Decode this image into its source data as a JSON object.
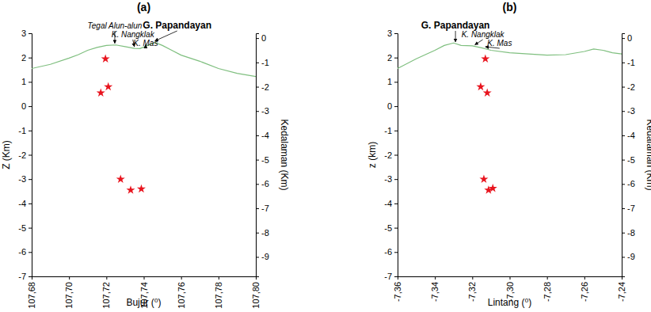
{
  "chart_data": [
    {
      "type": "scatter",
      "title": "(a)",
      "x_label": "Bujur (⁰)",
      "y_label": "Z (Km)",
      "y2_label": "Kedalaman (Km)",
      "xlim": [
        107.68,
        107.8
      ],
      "xticks": [
        {
          "value": 107.68,
          "label": "107,68"
        },
        {
          "value": 107.7,
          "label": "107,70"
        },
        {
          "value": 107.72,
          "label": "107,72"
        },
        {
          "value": 107.74,
          "label": "107,74"
        },
        {
          "value": 107.76,
          "label": "107,76"
        },
        {
          "value": 107.78,
          "label": "107,78"
        },
        {
          "value": 107.8,
          "label": "107,80"
        }
      ],
      "ylim": [
        -7,
        3
      ],
      "yticks": [
        -7,
        -6,
        -5,
        -4,
        -3,
        -2,
        -1,
        0,
        1,
        2,
        3
      ],
      "y2lim": [
        -9.8,
        0.2
      ],
      "y2ticks": [
        -9,
        -8,
        -7,
        -6,
        -5,
        -4,
        -3,
        -2,
        -1,
        0
      ],
      "series": [
        {
          "type": "line",
          "color": "#7fbf7f",
          "line_style": "solid",
          "x": [
            107.68,
            107.69,
            107.7,
            107.705,
            107.71,
            107.715,
            107.72,
            107.725,
            107.73,
            107.735,
            107.738,
            107.742,
            107.746,
            107.75,
            107.755,
            107.76,
            107.77,
            107.78,
            107.79,
            107.8
          ],
          "values": [
            1.55,
            1.72,
            1.98,
            2.12,
            2.3,
            2.42,
            2.5,
            2.52,
            2.45,
            2.38,
            2.37,
            2.5,
            2.62,
            2.5,
            2.3,
            2.1,
            1.85,
            1.55,
            1.35,
            1.22
          ]
        },
        {
          "type": "scatter",
          "color": "#e8141e",
          "marker": "star",
          "x": [
            107.7195,
            107.721,
            107.717,
            107.7276,
            107.733,
            107.7387
          ],
          "values": [
            1.95,
            0.8,
            0.55,
            -3.0,
            -3.45,
            -3.4
          ]
        }
      ],
      "annotations": [
        {
          "text": "Tegal Alun-alun",
          "x": 107.7245,
          "y": 2.52
        },
        {
          "text": "K. Nangklak",
          "x": 107.735,
          "y": 2.38
        },
        {
          "text": "K. Mas",
          "x": 107.741,
          "y": 2.46
        },
        {
          "text": "G. Papandayan",
          "x": 107.746,
          "y": 2.62
        }
      ]
    },
    {
      "type": "scatter",
      "title": "(b)",
      "x_label": "Lintang (⁰)",
      "y_label": "z (km)",
      "y2_label": "Kedalaman (Km)",
      "xlim": [
        -7.36,
        -7.24
      ],
      "xticks": [
        {
          "value": -7.36,
          "label": "-7,36"
        },
        {
          "value": -7.34,
          "label": "-7,34"
        },
        {
          "value": -7.32,
          "label": "-7,32"
        },
        {
          "value": -7.3,
          "label": "-7,30"
        },
        {
          "value": -7.28,
          "label": "-7,28"
        },
        {
          "value": -7.26,
          "label": "-7,26"
        },
        {
          "value": -7.24,
          "label": "-7,24"
        }
      ],
      "ylim": [
        -7,
        3
      ],
      "yticks": [
        -7,
        -6,
        -5,
        -4,
        -3,
        -2,
        -1,
        0,
        1,
        2,
        3
      ],
      "y2lim": [
        -9.8,
        0.2
      ],
      "y2ticks": [
        -9,
        -8,
        -7,
        -6,
        -5,
        -4,
        -3,
        -2,
        -1,
        0
      ],
      "series": [
        {
          "type": "line",
          "color": "#7fbf7f",
          "line_style": "solid",
          "x": [
            -7.36,
            -7.35,
            -7.34,
            -7.335,
            -7.33,
            -7.326,
            -7.32,
            -7.315,
            -7.31,
            -7.3,
            -7.29,
            -7.28,
            -7.27,
            -7.26,
            -7.255,
            -7.25,
            -7.245,
            -7.24
          ],
          "values": [
            1.55,
            1.95,
            2.3,
            2.5,
            2.6,
            2.5,
            2.48,
            2.4,
            2.3,
            2.2,
            2.15,
            2.1,
            2.12,
            2.25,
            2.35,
            2.3,
            2.2,
            2.15
          ]
        },
        {
          "type": "scatter",
          "color": "#e8141e",
          "marker": "star",
          "x": [
            -7.313,
            -7.3155,
            -7.312,
            -7.3138,
            -7.3113,
            -7.309
          ],
          "values": [
            1.95,
            0.8,
            0.55,
            -3.0,
            -3.45,
            -3.38
          ]
        }
      ],
      "annotations": [
        {
          "text": "G. Papandayan",
          "x": -7.329,
          "y": 2.58
        },
        {
          "text": "K. Nangklak",
          "x": -7.3186,
          "y": 2.46
        },
        {
          "text": "K. Mas",
          "x": -7.313,
          "y": 2.38
        }
      ]
    }
  ]
}
